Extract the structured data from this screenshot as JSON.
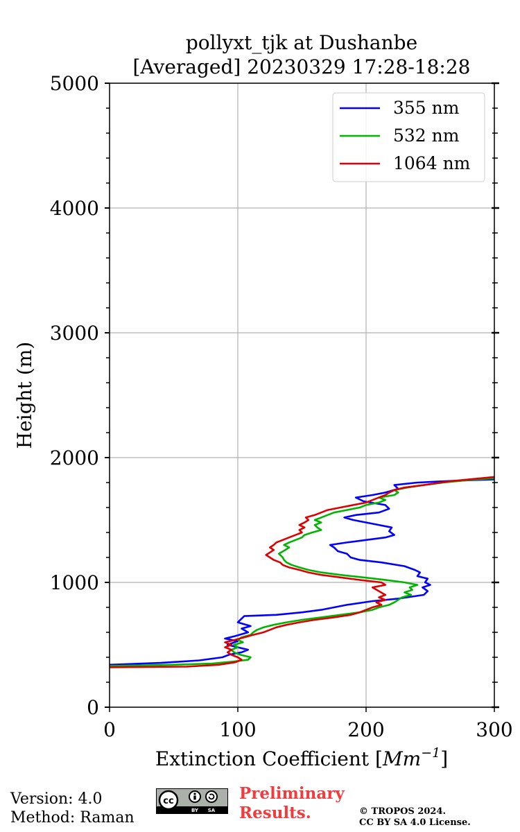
{
  "chart_data": {
    "type": "line",
    "title": "pollyxt_tjk at Dushanbe",
    "subtitle": "[Averaged] 20230329 17:28-18:28",
    "xlabel": "Extinction Coefficient [Mm⁻¹]",
    "xlabel_main": "Extinction Coefficient [",
    "xlabel_unit": "Mm",
    "xlabel_exp": "−1",
    "xlabel_close": "]",
    "ylabel": "Height (m)",
    "xlim": [
      0,
      300
    ],
    "ylim": [
      0,
      5000
    ],
    "xticks": [
      0,
      100,
      200,
      300
    ],
    "yticks": [
      0,
      1000,
      2000,
      3000,
      4000,
      5000
    ],
    "grid": true,
    "legend_position": "top-right",
    "series": [
      {
        "name": "355 nm",
        "color": "#0000ff",
        "points": [
          [
            0,
            340
          ],
          [
            40,
            355
          ],
          [
            70,
            375
          ],
          [
            88,
            400
          ],
          [
            93,
            420
          ],
          [
            103,
            440
          ],
          [
            108,
            460
          ],
          [
            100,
            480
          ],
          [
            92,
            500
          ],
          [
            100,
            530
          ],
          [
            90,
            550
          ],
          [
            98,
            570
          ],
          [
            108,
            600
          ],
          [
            103,
            630
          ],
          [
            110,
            650
          ],
          [
            100,
            680
          ],
          [
            103,
            710
          ],
          [
            105,
            730
          ],
          [
            130,
            740
          ],
          [
            150,
            760
          ],
          [
            165,
            780
          ],
          [
            175,
            800
          ],
          [
            185,
            820
          ],
          [
            205,
            850
          ],
          [
            225,
            870
          ],
          [
            245,
            900
          ],
          [
            248,
            930
          ],
          [
            244,
            960
          ],
          [
            250,
            980
          ],
          [
            246,
            1000
          ],
          [
            248,
            1030
          ],
          [
            240,
            1050
          ],
          [
            242,
            1080
          ],
          [
            238,
            1100
          ],
          [
            230,
            1130
          ],
          [
            212,
            1160
          ],
          [
            195,
            1180
          ],
          [
            188,
            1200
          ],
          [
            185,
            1230
          ],
          [
            178,
            1250
          ],
          [
            175,
            1280
          ],
          [
            172,
            1300
          ],
          [
            185,
            1320
          ],
          [
            200,
            1340
          ],
          [
            215,
            1360
          ],
          [
            222,
            1380
          ],
          [
            218,
            1410
          ],
          [
            220,
            1440
          ],
          [
            205,
            1470
          ],
          [
            190,
            1500
          ],
          [
            183,
            1520
          ],
          [
            192,
            1540
          ],
          [
            210,
            1560
          ],
          [
            218,
            1590
          ],
          [
            215,
            1620
          ],
          [
            198,
            1650
          ],
          [
            192,
            1680
          ],
          [
            205,
            1700
          ],
          [
            215,
            1720
          ],
          [
            225,
            1750
          ],
          [
            222,
            1780
          ],
          [
            240,
            1800
          ],
          [
            270,
            1815
          ],
          [
            300,
            1825
          ]
        ]
      },
      {
        "name": "532 nm",
        "color": "#00b400",
        "points": [
          [
            0,
            330
          ],
          [
            50,
            340
          ],
          [
            80,
            350
          ],
          [
            96,
            365
          ],
          [
            108,
            380
          ],
          [
            110,
            400
          ],
          [
            102,
            420
          ],
          [
            97,
            440
          ],
          [
            95,
            460
          ],
          [
            100,
            480
          ],
          [
            97,
            500
          ],
          [
            104,
            520
          ],
          [
            100,
            540
          ],
          [
            103,
            560
          ],
          [
            110,
            580
          ],
          [
            112,
            600
          ],
          [
            115,
            620
          ],
          [
            120,
            640
          ],
          [
            128,
            660
          ],
          [
            138,
            680
          ],
          [
            150,
            700
          ],
          [
            165,
            720
          ],
          [
            180,
            740
          ],
          [
            195,
            760
          ],
          [
            205,
            780
          ],
          [
            210,
            800
          ],
          [
            218,
            820
          ],
          [
            222,
            840
          ],
          [
            225,
            860
          ],
          [
            228,
            880
          ],
          [
            235,
            900
          ],
          [
            230,
            920
          ],
          [
            236,
            940
          ],
          [
            234,
            960
          ],
          [
            240,
            980
          ],
          [
            230,
            1000
          ],
          [
            215,
            1020
          ],
          [
            198,
            1040
          ],
          [
            180,
            1060
          ],
          [
            165,
            1080
          ],
          [
            155,
            1100
          ],
          [
            148,
            1120
          ],
          [
            142,
            1140
          ],
          [
            138,
            1160
          ],
          [
            136,
            1180
          ],
          [
            135,
            1200
          ],
          [
            132,
            1230
          ],
          [
            137,
            1260
          ],
          [
            140,
            1280
          ],
          [
            136,
            1300
          ],
          [
            140,
            1320
          ],
          [
            145,
            1340
          ],
          [
            150,
            1360
          ],
          [
            152,
            1380
          ],
          [
            158,
            1400
          ],
          [
            165,
            1420
          ],
          [
            162,
            1440
          ],
          [
            160,
            1460
          ],
          [
            165,
            1480
          ],
          [
            160,
            1500
          ],
          [
            165,
            1520
          ],
          [
            170,
            1540
          ],
          [
            175,
            1560
          ],
          [
            185,
            1580
          ],
          [
            195,
            1600
          ],
          [
            200,
            1620
          ],
          [
            210,
            1640
          ],
          [
            215,
            1660
          ],
          [
            210,
            1680
          ],
          [
            222,
            1700
          ],
          [
            225,
            1720
          ],
          [
            222,
            1740
          ],
          [
            232,
            1760
          ],
          [
            245,
            1780
          ],
          [
            260,
            1800
          ],
          [
            280,
            1820
          ],
          [
            300,
            1835
          ]
        ]
      },
      {
        "name": "1064 nm",
        "color": "#dc0000",
        "points": [
          [
            0,
            320
          ],
          [
            60,
            325
          ],
          [
            85,
            340
          ],
          [
            98,
            360
          ],
          [
            103,
            380
          ],
          [
            100,
            400
          ],
          [
            95,
            420
          ],
          [
            92,
            440
          ],
          [
            95,
            460
          ],
          [
            90,
            480
          ],
          [
            95,
            500
          ],
          [
            90,
            520
          ],
          [
            98,
            540
          ],
          [
            105,
            560
          ],
          [
            112,
            580
          ],
          [
            120,
            600
          ],
          [
            125,
            620
          ],
          [
            130,
            640
          ],
          [
            138,
            660
          ],
          [
            148,
            680
          ],
          [
            160,
            700
          ],
          [
            175,
            720
          ],
          [
            188,
            740
          ],
          [
            195,
            760
          ],
          [
            200,
            780
          ],
          [
            205,
            800
          ],
          [
            212,
            820
          ],
          [
            208,
            840
          ],
          [
            215,
            860
          ],
          [
            210,
            880
          ],
          [
            215,
            900
          ],
          [
            210,
            930
          ],
          [
            205,
            960
          ],
          [
            215,
            980
          ],
          [
            212,
            1000
          ],
          [
            195,
            1020
          ],
          [
            180,
            1040
          ],
          [
            165,
            1060
          ],
          [
            155,
            1080
          ],
          [
            148,
            1100
          ],
          [
            140,
            1120
          ],
          [
            135,
            1140
          ],
          [
            133,
            1160
          ],
          [
            128,
            1180
          ],
          [
            125,
            1200
          ],
          [
            122,
            1220
          ],
          [
            125,
            1240
          ],
          [
            128,
            1260
          ],
          [
            125,
            1280
          ],
          [
            128,
            1300
          ],
          [
            130,
            1320
          ],
          [
            135,
            1340
          ],
          [
            140,
            1360
          ],
          [
            145,
            1380
          ],
          [
            150,
            1400
          ],
          [
            148,
            1420
          ],
          [
            152,
            1440
          ],
          [
            148,
            1460
          ],
          [
            152,
            1480
          ],
          [
            155,
            1500
          ],
          [
            153,
            1520
          ],
          [
            160,
            1540
          ],
          [
            165,
            1560
          ],
          [
            170,
            1580
          ],
          [
            180,
            1600
          ],
          [
            190,
            1620
          ],
          [
            200,
            1640
          ],
          [
            205,
            1660
          ],
          [
            210,
            1680
          ],
          [
            215,
            1700
          ],
          [
            218,
            1720
          ],
          [
            222,
            1740
          ],
          [
            230,
            1760
          ],
          [
            245,
            1780
          ],
          [
            265,
            1810
          ],
          [
            300,
            1845
          ]
        ]
      }
    ]
  },
  "footer": {
    "version": "Version: 4.0",
    "method": "Method: Raman",
    "preliminary_line1": "Preliminary",
    "preliminary_line2": "Results.",
    "copyright_line1": "© TROPOS 2024.",
    "copyright_line2": "CC BY SA 4.0 License.",
    "badge_cc": "cc",
    "badge_by": "BY",
    "badge_sa": "SA"
  }
}
